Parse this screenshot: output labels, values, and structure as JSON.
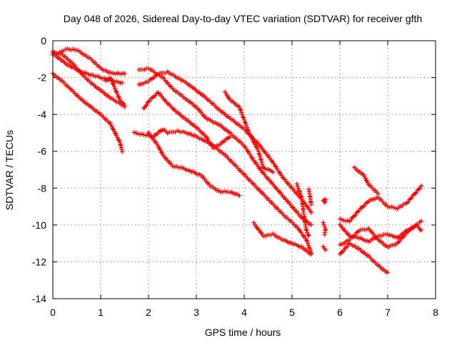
{
  "chart_data": {
    "type": "scatter",
    "title": "Day 048 of 2026, Sidereal Day-to-day VTEC variation (SDTVAR) for receiver gfth",
    "xlabel": "GPS time / hours",
    "ylabel": "SDTVAR / TECUs",
    "xlim": [
      0,
      8
    ],
    "ylim": [
      -14,
      0
    ],
    "xticks": [
      "0",
      "1",
      "2",
      "3",
      "4",
      "5",
      "6",
      "7",
      "8"
    ],
    "yticks": [
      "0",
      "-2",
      "-4",
      "-6",
      "-8",
      "-10",
      "-12",
      "-14"
    ],
    "grid": true,
    "marker": "+",
    "color": "#ff0000",
    "series": [
      {
        "name": "track-1",
        "x": [
          0.0,
          0.3,
          0.5,
          0.8,
          1.0,
          1.2,
          1.5
        ],
        "y": [
          -0.8,
          -0.45,
          -0.5,
          -1.0,
          -1.5,
          -1.75,
          -1.8
        ]
      },
      {
        "name": "track-2",
        "x": [
          0.0,
          0.2,
          0.4,
          0.6,
          0.8,
          1.0,
          1.2,
          1.4,
          1.5
        ],
        "y": [
          -0.6,
          -0.75,
          -1.2,
          -1.8,
          -2.3,
          -2.7,
          -3.1,
          -3.4,
          -3.6
        ]
      },
      {
        "name": "track-3",
        "x": [
          0.0,
          0.1,
          0.3,
          0.6,
          1.0,
          1.3,
          1.45
        ],
        "y": [
          -0.7,
          -0.9,
          -1.3,
          -1.7,
          -2.0,
          -2.2,
          -2.3
        ]
      },
      {
        "name": "track-4",
        "x": [
          0.0,
          0.2,
          0.4,
          0.6,
          0.8,
          1.0,
          1.2,
          1.3,
          1.4,
          1.45
        ],
        "y": [
          -1.8,
          -2.2,
          -2.7,
          -3.2,
          -3.6,
          -4.0,
          -4.5,
          -5.0,
          -5.5,
          -6.0
        ]
      },
      {
        "name": "track-5",
        "x": [
          1.1,
          1.2,
          1.3,
          1.4,
          1.5
        ],
        "y": [
          -2.2,
          -2.0,
          -2.6,
          -3.2,
          -3.5
        ]
      },
      {
        "name": "track-6",
        "x": [
          1.8,
          2.0,
          2.3,
          2.5,
          2.8,
          3.0,
          3.2,
          3.5,
          3.7,
          4.0,
          4.2,
          4.4,
          4.6,
          4.8,
          5.0,
          5.2,
          5.4
        ],
        "y": [
          -1.6,
          -1.5,
          -2.0,
          -2.6,
          -3.2,
          -3.6,
          -4.2,
          -4.6,
          -5.0,
          -5.7,
          -6.5,
          -7.2,
          -7.8,
          -8.4,
          -9.0,
          -9.6,
          -10.0
        ]
      },
      {
        "name": "track-7",
        "x": [
          1.8,
          2.0,
          2.2,
          2.4,
          2.6,
          2.8,
          3.0,
          3.2,
          3.5,
          3.7,
          4.0,
          4.3,
          4.6,
          4.8,
          5.0,
          5.2,
          5.4
        ],
        "y": [
          -2.4,
          -2.2,
          -1.8,
          -1.7,
          -2.0,
          -2.3,
          -2.7,
          -3.1,
          -3.8,
          -4.2,
          -4.8,
          -5.6,
          -6.6,
          -7.4,
          -8.0,
          -8.6,
          -9.3
        ]
      },
      {
        "name": "track-8",
        "x": [
          1.9,
          2.0,
          2.2,
          2.4,
          2.6,
          2.8,
          3.0,
          3.2,
          3.35,
          3.5,
          3.7
        ],
        "y": [
          -3.7,
          -3.3,
          -2.8,
          -3.4,
          -3.9,
          -4.3,
          -4.7,
          -5.2,
          -5.8,
          -5.6,
          -5.2
        ]
      },
      {
        "name": "track-9",
        "x": [
          1.7,
          1.9,
          2.1,
          2.3,
          2.4,
          2.6,
          2.8,
          3.0,
          3.3,
          3.6,
          3.9,
          4.2,
          4.5,
          4.8,
          5.1,
          5.3,
          5.4
        ],
        "y": [
          -5.0,
          -5.1,
          -5.2,
          -4.8,
          -5.0,
          -4.9,
          -5.0,
          -5.2,
          -5.6,
          -6.2,
          -7.0,
          -7.8,
          -8.6,
          -9.4,
          -10.1,
          -10.8,
          -11.5
        ]
      },
      {
        "name": "track-10",
        "x": [
          2.0,
          2.2,
          2.3,
          2.5,
          2.7,
          2.9,
          3.1,
          3.3,
          3.5,
          3.7,
          3.9
        ],
        "y": [
          -5.0,
          -5.7,
          -6.2,
          -6.8,
          -6.9,
          -7.1,
          -7.3,
          -7.9,
          -8.2,
          -8.2,
          -8.4
        ]
      },
      {
        "name": "track-11",
        "x": [
          3.6,
          3.7,
          3.9,
          4.0,
          4.1,
          4.3,
          4.4,
          4.6
        ],
        "y": [
          -2.8,
          -3.2,
          -3.6,
          -4.3,
          -5.0,
          -6.0,
          -6.9,
          -7.1
        ]
      },
      {
        "name": "track-12",
        "x": [
          4.2,
          4.4,
          4.6,
          4.8,
          5.0,
          5.2,
          5.4
        ],
        "y": [
          -9.9,
          -10.6,
          -10.5,
          -10.8,
          -11.0,
          -11.2,
          -11.6
        ]
      },
      {
        "name": "track-13",
        "x": [
          5.1,
          5.2,
          5.25,
          5.3,
          5.35
        ],
        "y": [
          -7.8,
          -8.5,
          -9.5,
          -10.3,
          -10.6
        ]
      },
      {
        "name": "track-14",
        "x": [
          5.35,
          5.38,
          5.4
        ],
        "y": [
          -8.1,
          -8.5,
          -8.9
        ]
      },
      {
        "name": "track-15",
        "x": [
          5.65,
          5.7,
          5.68
        ],
        "y": [
          -8.7,
          -8.6,
          -8.8
        ]
      },
      {
        "name": "track-16",
        "x": [
          5.65,
          5.7,
          5.68
        ],
        "y": [
          -9.9,
          -10.2,
          -10.5
        ]
      },
      {
        "name": "track-17",
        "x": [
          5.65,
          5.7
        ],
        "y": [
          -11.2,
          -11.35
        ]
      },
      {
        "name": "track-18",
        "x": [
          6.0,
          6.2,
          6.4,
          6.6,
          6.8,
          7.0,
          7.2,
          7.4,
          7.7
        ],
        "y": [
          -9.7,
          -9.8,
          -9.2,
          -8.7,
          -8.5,
          -9.0,
          -9.1,
          -8.8,
          -7.9
        ]
      },
      {
        "name": "track-19",
        "x": [
          6.0,
          6.2,
          6.4,
          6.6,
          6.8,
          7.0
        ],
        "y": [
          -11.6,
          -11.0,
          -11.3,
          -11.7,
          -12.2,
          -12.6
        ]
      },
      {
        "name": "track-20",
        "x": [
          6.0,
          6.2,
          6.4,
          6.6,
          6.8,
          7.0,
          7.2,
          7.4,
          7.6,
          7.7
        ],
        "y": [
          -10.0,
          -10.6,
          -10.7,
          -10.9,
          -10.6,
          -10.5,
          -10.7,
          -10.3,
          -10.0,
          -10.3
        ]
      },
      {
        "name": "track-21",
        "x": [
          6.0,
          6.2,
          6.4,
          6.6,
          6.8,
          7.0,
          7.2,
          7.4,
          7.6,
          7.7
        ],
        "y": [
          -11.1,
          -10.8,
          -10.3,
          -10.2,
          -10.8,
          -11.2,
          -11.0,
          -10.4,
          -10.0,
          -9.8
        ]
      },
      {
        "name": "track-22",
        "x": [
          6.3,
          6.5,
          6.6,
          6.8
        ],
        "y": [
          -6.9,
          -7.3,
          -7.8,
          -8.3
        ]
      }
    ]
  }
}
